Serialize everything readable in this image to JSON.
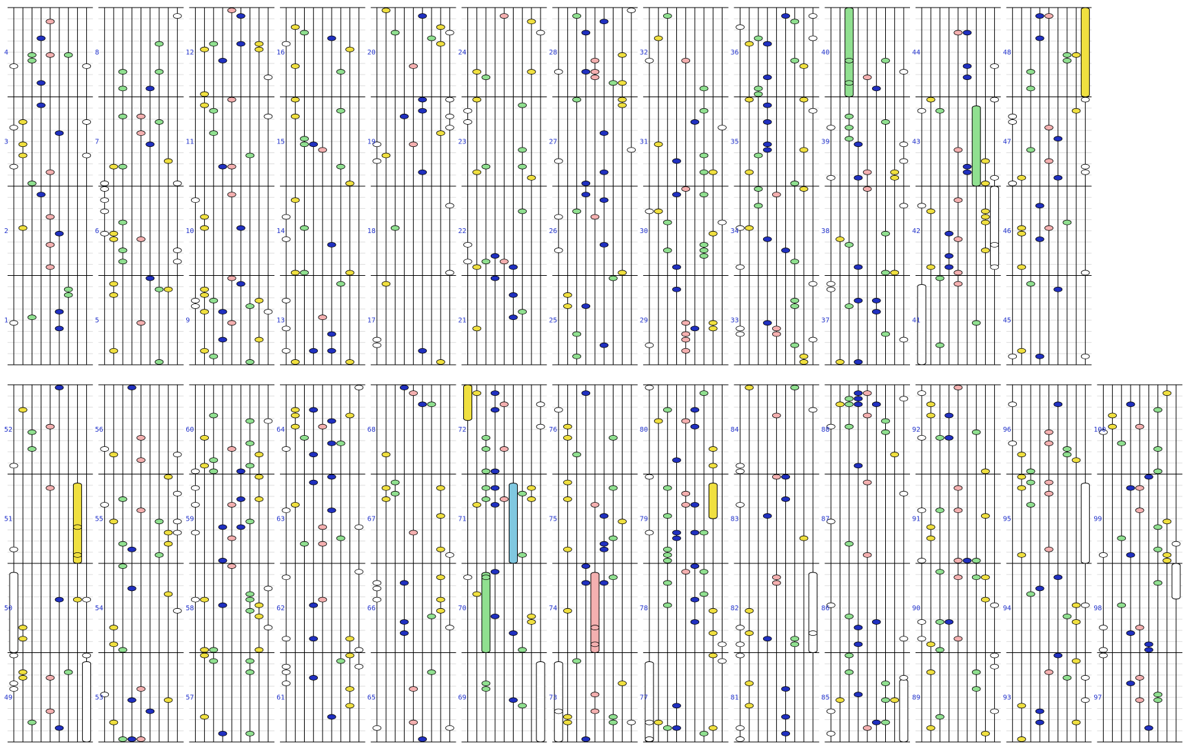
{
  "measures": [
    1,
    2,
    3,
    4,
    5,
    6,
    7,
    8,
    9,
    10,
    11,
    12,
    13,
    14,
    15,
    16,
    17,
    18,
    19,
    20,
    21,
    22,
    23,
    24,
    25,
    26,
    27,
    28,
    29,
    30,
    31,
    32,
    33,
    34,
    35,
    36,
    37,
    38,
    39,
    40,
    41,
    42,
    43,
    44,
    45,
    46,
    47,
    48,
    49,
    50,
    51,
    52,
    53,
    54,
    55,
    56,
    57,
    58,
    59,
    60,
    61,
    62,
    63,
    64,
    65,
    66,
    67,
    68,
    69,
    70,
    71,
    72,
    73,
    74,
    75,
    76,
    77,
    78,
    79,
    80,
    81,
    82,
    83,
    84,
    85,
    86,
    87,
    88,
    89,
    90,
    91,
    92,
    93,
    94,
    95,
    96,
    97,
    98,
    99,
    100
  ]
}
